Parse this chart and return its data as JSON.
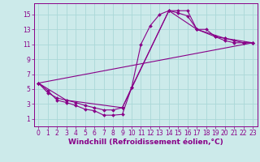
{
  "xlabel": "Windchill (Refroidissement éolien,°C)",
  "background_color": "#cceaea",
  "line_color": "#880088",
  "xlim": [
    -0.5,
    23.5
  ],
  "ylim": [
    0,
    16.5
  ],
  "xticks": [
    0,
    1,
    2,
    3,
    4,
    5,
    6,
    7,
    8,
    9,
    10,
    11,
    12,
    13,
    14,
    15,
    16,
    17,
    18,
    19,
    20,
    21,
    22,
    23
  ],
  "yticks": [
    1,
    3,
    5,
    7,
    9,
    11,
    13,
    15
  ],
  "line1_x": [
    0,
    1,
    2,
    3,
    4,
    5,
    6,
    7,
    8,
    9,
    10,
    11,
    12,
    13,
    14,
    15,
    16,
    17,
    18,
    19,
    20,
    21,
    22,
    23
  ],
  "line1_y": [
    5.8,
    4.8,
    3.5,
    3.2,
    2.8,
    2.3,
    2.1,
    1.5,
    1.5,
    1.6,
    5.2,
    11.0,
    13.5,
    15.0,
    15.5,
    15.5,
    15.5,
    13.0,
    13.0,
    12.0,
    11.5,
    11.2,
    11.2,
    11.2
  ],
  "line2_x": [
    0,
    1,
    2,
    3,
    4,
    5,
    6,
    7,
    8,
    9,
    10,
    14,
    15,
    16,
    17,
    19,
    20,
    21,
    22,
    23
  ],
  "line2_y": [
    5.8,
    4.5,
    3.8,
    3.5,
    3.2,
    2.8,
    2.5,
    2.2,
    2.2,
    2.5,
    5.2,
    15.5,
    15.2,
    14.8,
    13.0,
    12.0,
    11.8,
    11.5,
    11.2,
    11.2
  ],
  "line3_x": [
    0,
    3,
    9,
    14,
    17,
    20,
    23
  ],
  "line3_y": [
    5.8,
    3.5,
    2.5,
    15.5,
    13.0,
    11.8,
    11.2
  ],
  "line4_x": [
    0,
    23
  ],
  "line4_y": [
    5.8,
    11.2
  ],
  "grid_color": "#aad8d8",
  "tick_fontsize": 5.5,
  "xlabel_fontsize": 6.5
}
